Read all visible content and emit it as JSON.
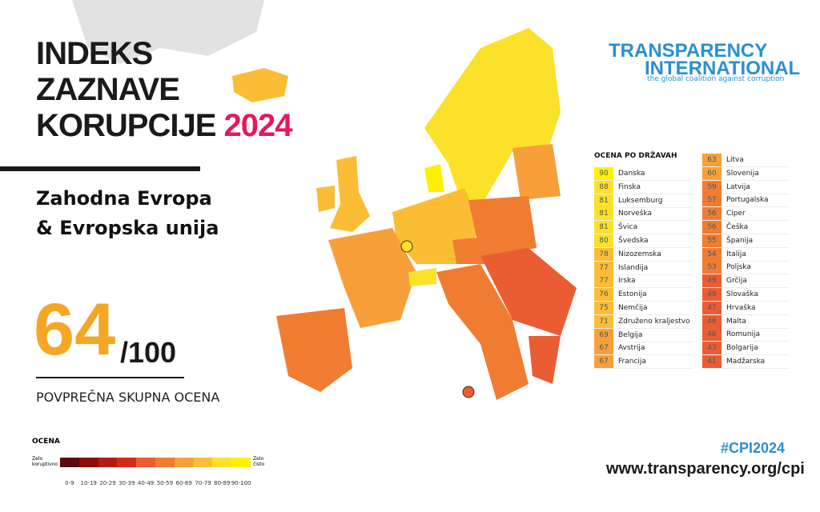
{
  "header": {
    "title_lines": [
      "INDEKS",
      "ZAZNAVE",
      "KORUPCIJE"
    ],
    "year": "2024",
    "subtitle_lines": [
      "Zahodna Evropa",
      "& Evropska unija"
    ]
  },
  "average": {
    "score": 64,
    "out_of": "/100",
    "label": "POVPREČNA SKUPNA OCENA"
  },
  "logo": {
    "line1": "TRANSPARENCY",
    "line2": "INTERNATIONAL",
    "tagline": "the global coalition against corruption"
  },
  "scale": {
    "title": "OCENA",
    "low": "Zelo koruptivno",
    "high": "Zelo čisto",
    "bins": [
      {
        "label": "0-9",
        "color": "#5c0a0a"
      },
      {
        "label": "10-19",
        "color": "#8b0e0e"
      },
      {
        "label": "20-29",
        "color": "#b01c12"
      },
      {
        "label": "30-39",
        "color": "#d12c1a"
      },
      {
        "label": "40-49",
        "color": "#ea5d32"
      },
      {
        "label": "50-59",
        "color": "#f07c32"
      },
      {
        "label": "60-69",
        "color": "#f7a03a"
      },
      {
        "label": "70-79",
        "color": "#fbbd36"
      },
      {
        "label": "80-89",
        "color": "#fce12a"
      },
      {
        "label": "90-100",
        "color": "#fff200"
      }
    ]
  },
  "table": {
    "header": "OCENA PO DRŽAVAH",
    "columns": [
      [
        {
          "score": 90,
          "country": "Danska"
        },
        {
          "score": 88,
          "country": "Finska"
        },
        {
          "score": 81,
          "country": "Luksemburg"
        },
        {
          "score": 81,
          "country": "Norveška"
        },
        {
          "score": 81,
          "country": "Švica"
        },
        {
          "score": 80,
          "country": "Švedska"
        },
        {
          "score": 78,
          "country": "Nizozemska"
        },
        {
          "score": 77,
          "country": "Islandija"
        },
        {
          "score": 77,
          "country": "Irska"
        },
        {
          "score": 76,
          "country": "Estonija"
        },
        {
          "score": 75,
          "country": "Nemčija"
        },
        {
          "score": 71,
          "country": "Združeno kraljestvo"
        },
        {
          "score": 69,
          "country": "Belgija"
        },
        {
          "score": 67,
          "country": "Avstrija"
        },
        {
          "score": 67,
          "country": "Francija"
        }
      ],
      [
        {
          "score": 63,
          "country": "Litva"
        },
        {
          "score": 60,
          "country": "Slovenija"
        },
        {
          "score": 59,
          "country": "Latvija"
        },
        {
          "score": 57,
          "country": "Portugalska"
        },
        {
          "score": 56,
          "country": "Ciper"
        },
        {
          "score": 56,
          "country": "Češka"
        },
        {
          "score": 55,
          "country": "Španija"
        },
        {
          "score": 54,
          "country": "Italija"
        },
        {
          "score": 53,
          "country": "Poljska"
        },
        {
          "score": 49,
          "country": "Grčija"
        },
        {
          "score": 49,
          "country": "Slovaška"
        },
        {
          "score": 47,
          "country": "Hrvaška"
        },
        {
          "score": 46,
          "country": "Malta"
        },
        {
          "score": 46,
          "country": "Romunija"
        },
        {
          "score": 43,
          "country": "Bolgarija"
        },
        {
          "score": 41,
          "country": "Madžarska"
        }
      ]
    ]
  },
  "footer": {
    "hashtag": "#CPI2024",
    "url": "www.transparency.org/cpi"
  }
}
